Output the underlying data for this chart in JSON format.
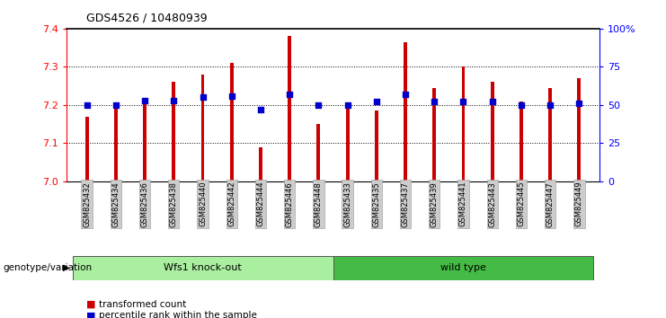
{
  "title": "GDS4526 / 10480939",
  "samples": [
    "GSM825432",
    "GSM825434",
    "GSM825436",
    "GSM825438",
    "GSM825440",
    "GSM825442",
    "GSM825444",
    "GSM825446",
    "GSM825448",
    "GSM825433",
    "GSM825435",
    "GSM825437",
    "GSM825439",
    "GSM825441",
    "GSM825443",
    "GSM825445",
    "GSM825447",
    "GSM825449"
  ],
  "bar_values": [
    7.17,
    7.195,
    7.21,
    7.26,
    7.28,
    7.31,
    7.09,
    7.38,
    7.15,
    7.2,
    7.185,
    7.365,
    7.245,
    7.3,
    7.26,
    7.21,
    7.245,
    7.27
  ],
  "dot_values": [
    50,
    50,
    53,
    53,
    55,
    56,
    47,
    57,
    50,
    50,
    52,
    57,
    52,
    52,
    52,
    50,
    50,
    51
  ],
  "ylim": [
    7.0,
    7.4
  ],
  "yticks": [
    7.0,
    7.1,
    7.2,
    7.3,
    7.4
  ],
  "yticks_right": [
    0,
    25,
    50,
    75,
    100
  ],
  "yticks_right_labels": [
    "0",
    "25",
    "50",
    "75",
    "100%"
  ],
  "bar_color": "#CC0000",
  "dot_color": "#0000CC",
  "background_color": "#ffffff",
  "grid_color": "#000000",
  "group1_label": "Wfs1 knock-out",
  "group2_label": "wild type",
  "group1_color": "#AAEEA0",
  "group2_color": "#44BB44",
  "group1_count": 9,
  "group2_count": 9,
  "xlabel_genotype": "genotype/variation",
  "legend_bar": "transformed count",
  "legend_dot": "percentile rank within the sample",
  "tick_label_bg": "#CCCCCC",
  "bar_width": 0.12
}
